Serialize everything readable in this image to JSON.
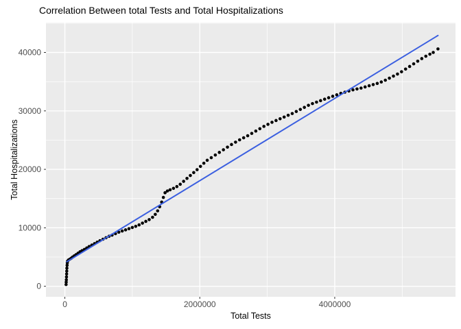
{
  "chart_data": {
    "type": "scatter",
    "title": "Correlation Between total Tests and Total Hospitalizations",
    "xlabel": "Total Tests",
    "ylabel": "Total Hospitalizations",
    "xlim": [
      -280000,
      5790000
    ],
    "ylim": [
      -1800,
      45100
    ],
    "x_ticks": [
      0,
      2000000,
      4000000
    ],
    "x_tick_labels": [
      "0",
      "2000000",
      "4000000"
    ],
    "x_minor_ticks": [
      1000000,
      3000000,
      5000000
    ],
    "y_ticks": [
      0,
      10000,
      20000,
      30000,
      40000
    ],
    "y_tick_labels": [
      "0",
      "10000",
      "20000",
      "30000",
      "40000"
    ],
    "y_minor_ticks": [
      5000,
      15000,
      25000,
      35000,
      45000
    ],
    "grid": true,
    "legend": false,
    "colors": {
      "panel_bg": "#EBEBEB",
      "grid": "#FFFFFF",
      "points": "#000000",
      "line": "#3B5FE0",
      "tick_text": "#4D4D4D",
      "tick_mark": "#333333"
    },
    "series": [
      {
        "name": "observations",
        "type": "scatter",
        "points": [
          [
            18000,
            300
          ],
          [
            20000,
            700
          ],
          [
            22000,
            1100
          ],
          [
            24000,
            1600
          ],
          [
            26000,
            2100
          ],
          [
            28000,
            2600
          ],
          [
            30000,
            3100
          ],
          [
            33000,
            3600
          ],
          [
            36000,
            4000
          ],
          [
            40000,
            4300
          ],
          [
            55000,
            4500
          ],
          [
            75000,
            4650
          ],
          [
            95000,
            4800
          ],
          [
            115000,
            5000
          ],
          [
            140000,
            5200
          ],
          [
            165000,
            5400
          ],
          [
            195000,
            5650
          ],
          [
            225000,
            5900
          ],
          [
            255000,
            6100
          ],
          [
            290000,
            6300
          ],
          [
            325000,
            6550
          ],
          [
            360000,
            6800
          ],
          [
            400000,
            7050
          ],
          [
            440000,
            7300
          ],
          [
            480000,
            7550
          ],
          [
            520000,
            7800
          ],
          [
            565000,
            8050
          ],
          [
            610000,
            8300
          ],
          [
            655000,
            8550
          ],
          [
            700000,
            8750
          ],
          [
            750000,
            9000
          ],
          [
            800000,
            9250
          ],
          [
            850000,
            9450
          ],
          [
            900000,
            9650
          ],
          [
            950000,
            9850
          ],
          [
            1000000,
            10050
          ],
          [
            1050000,
            10250
          ],
          [
            1100000,
            10500
          ],
          [
            1150000,
            10800
          ],
          [
            1200000,
            11100
          ],
          [
            1250000,
            11400
          ],
          [
            1300000,
            11800
          ],
          [
            1340000,
            12300
          ],
          [
            1375000,
            12900
          ],
          [
            1405000,
            13600
          ],
          [
            1435000,
            14400
          ],
          [
            1460000,
            15200
          ],
          [
            1485000,
            16000
          ],
          [
            1520000,
            16300
          ],
          [
            1560000,
            16500
          ],
          [
            1610000,
            16750
          ],
          [
            1660000,
            17050
          ],
          [
            1710000,
            17450
          ],
          [
            1760000,
            17950
          ],
          [
            1810000,
            18450
          ],
          [
            1860000,
            18950
          ],
          [
            1910000,
            19450
          ],
          [
            1960000,
            19950
          ],
          [
            2010000,
            20500
          ],
          [
            2060000,
            21050
          ],
          [
            2110000,
            21550
          ],
          [
            2170000,
            22000
          ],
          [
            2230000,
            22450
          ],
          [
            2290000,
            22900
          ],
          [
            2350000,
            23350
          ],
          [
            2410000,
            23800
          ],
          [
            2470000,
            24250
          ],
          [
            2530000,
            24650
          ],
          [
            2590000,
            25050
          ],
          [
            2650000,
            25400
          ],
          [
            2710000,
            25750
          ],
          [
            2770000,
            26150
          ],
          [
            2830000,
            26550
          ],
          [
            2890000,
            26950
          ],
          [
            2950000,
            27350
          ],
          [
            3010000,
            27700
          ],
          [
            3070000,
            28050
          ],
          [
            3130000,
            28350
          ],
          [
            3190000,
            28650
          ],
          [
            3250000,
            28950
          ],
          [
            3310000,
            29250
          ],
          [
            3370000,
            29550
          ],
          [
            3430000,
            29900
          ],
          [
            3490000,
            30250
          ],
          [
            3550000,
            30600
          ],
          [
            3610000,
            30950
          ],
          [
            3670000,
            31250
          ],
          [
            3730000,
            31500
          ],
          [
            3790000,
            31750
          ],
          [
            3850000,
            32000
          ],
          [
            3910000,
            32250
          ],
          [
            3970000,
            32500
          ],
          [
            4030000,
            32750
          ],
          [
            4090000,
            33000
          ],
          [
            4150000,
            33200
          ],
          [
            4210000,
            33400
          ],
          [
            4270000,
            33600
          ],
          [
            4330000,
            33750
          ],
          [
            4390000,
            33900
          ],
          [
            4450000,
            34100
          ],
          [
            4510000,
            34300
          ],
          [
            4570000,
            34500
          ],
          [
            4630000,
            34700
          ],
          [
            4690000,
            34950
          ],
          [
            4750000,
            35250
          ],
          [
            4810000,
            35600
          ],
          [
            4870000,
            35950
          ],
          [
            4930000,
            36300
          ],
          [
            4990000,
            36700
          ],
          [
            5050000,
            37150
          ],
          [
            5110000,
            37600
          ],
          [
            5170000,
            38050
          ],
          [
            5230000,
            38500
          ],
          [
            5290000,
            38950
          ],
          [
            5350000,
            39350
          ],
          [
            5410000,
            39700
          ],
          [
            5460000,
            40000
          ],
          [
            5530000,
            40600
          ]
        ]
      },
      {
        "name": "linear-fit",
        "type": "line",
        "points": [
          [
            30000,
            4200
          ],
          [
            5530000,
            42900
          ]
        ]
      }
    ]
  }
}
